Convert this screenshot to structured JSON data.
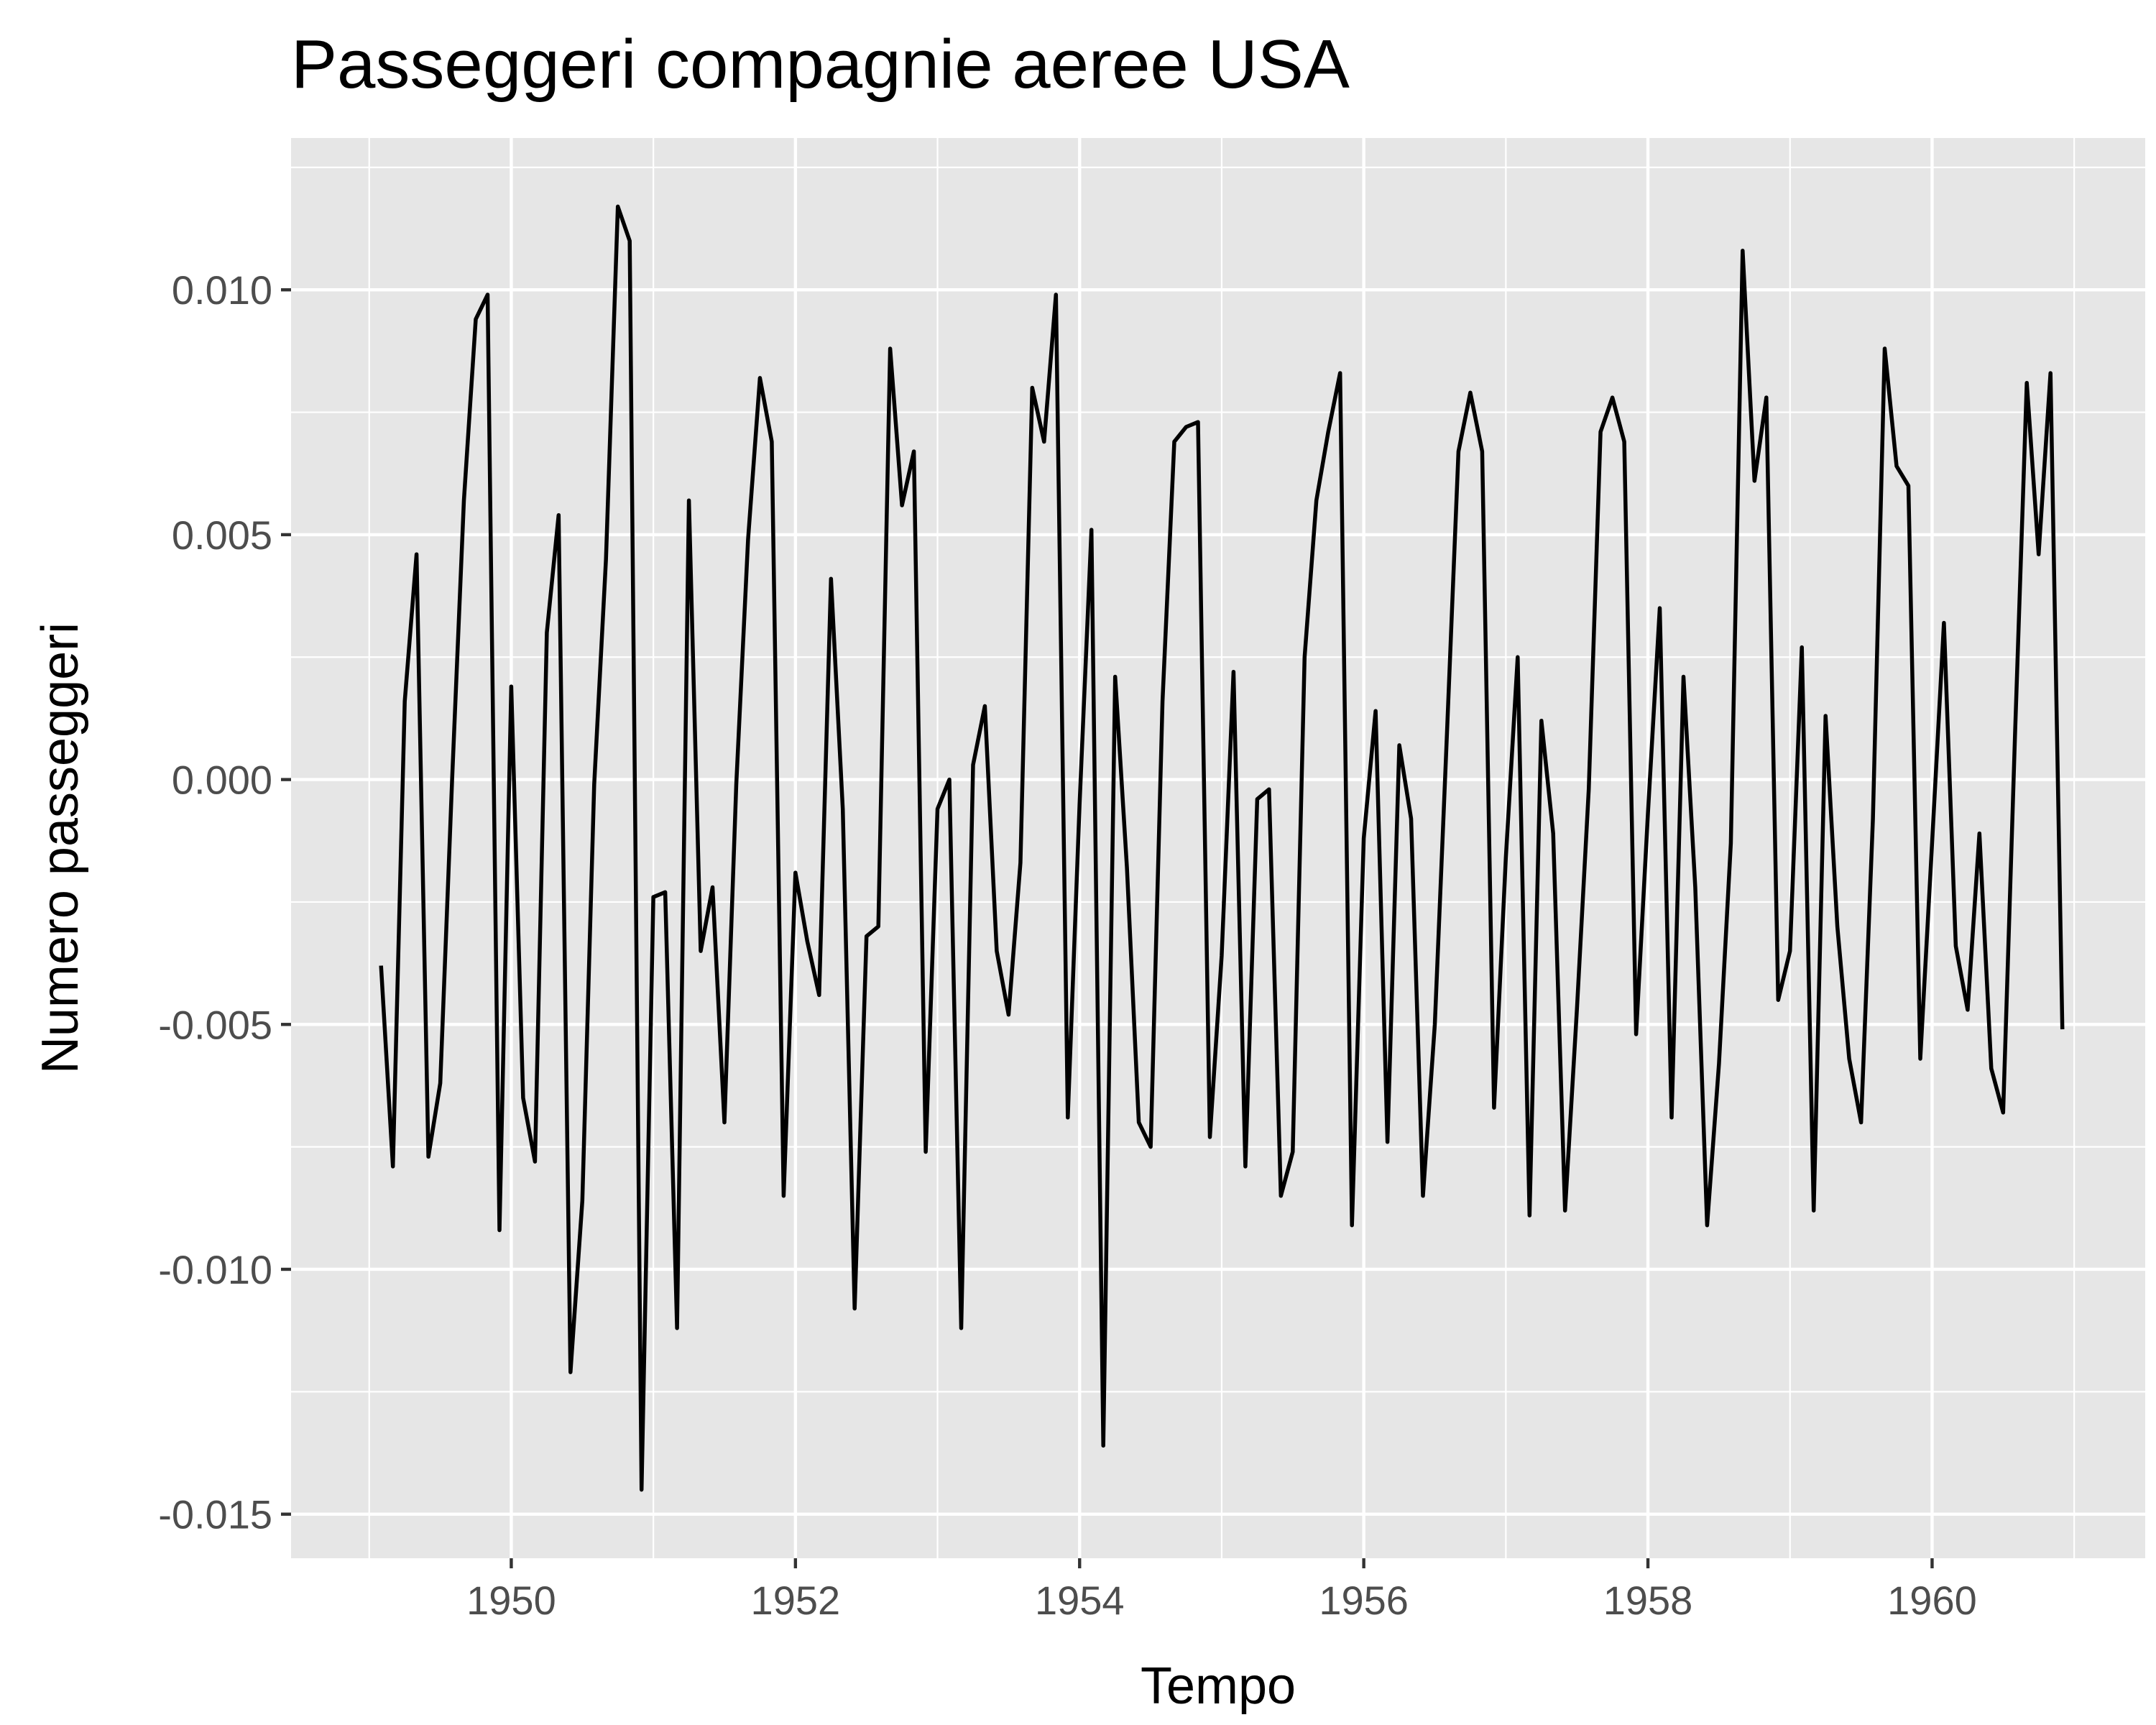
{
  "chart_data": {
    "type": "line",
    "title": "Passeggeri compagnie aeree USA",
    "xlabel": "Tempo",
    "ylabel": "Numero passeggeri",
    "xlim": [
      1948.45,
      1961.5
    ],
    "ylim": [
      -0.0159,
      0.0131
    ],
    "x_ticks": [
      1950,
      1952,
      1954,
      1956,
      1958,
      1960
    ],
    "x_tick_labels": [
      "1950",
      "1952",
      "1954",
      "1956",
      "1958",
      "1960"
    ],
    "y_ticks": [
      -0.015,
      -0.01,
      -0.005,
      0,
      0.005,
      0.01
    ],
    "y_tick_labels": [
      "-0.015",
      "-0.010",
      "-0.005",
      "0.000",
      "0.005",
      "0.010"
    ],
    "grid": true,
    "panel_background": "#e6e6e6",
    "grid_color": "#ffffff",
    "line_color": "#000000",
    "x_start": 1949.0833,
    "x_step": 0.083333,
    "series": [
      {
        "values": [
          -0.0038,
          -0.0079,
          0.0016,
          0.0046,
          -0.0077,
          -0.0062,
          0.0,
          0.0057,
          0.0094,
          0.0099,
          -0.0092,
          0.0019,
          -0.0065,
          -0.0078,
          0.003,
          0.0054,
          -0.0121,
          -0.0086,
          -0.0001,
          0.0045,
          0.0117,
          0.011,
          -0.0145,
          -0.0024,
          -0.0023,
          -0.0112,
          0.0057,
          -0.0035,
          -0.0022,
          -0.007,
          -0.0001,
          0.0049,
          0.0082,
          0.0069,
          -0.0085,
          -0.0019,
          -0.0033,
          -0.0044,
          0.0041,
          -0.0006,
          -0.0108,
          -0.0032,
          -0.003,
          0.0088,
          0.0056,
          0.0067,
          -0.0076,
          -0.0006,
          0.0,
          -0.0112,
          0.0003,
          0.0015,
          -0.0035,
          -0.0048,
          -0.0017,
          0.008,
          0.0069,
          0.0099,
          -0.0069,
          -0.0005,
          0.0051,
          -0.0136,
          0.0021,
          -0.0018,
          -0.007,
          -0.0075,
          0.0016,
          0.0069,
          0.0072,
          0.0073,
          -0.0073,
          -0.0036,
          0.0022,
          -0.0079,
          -0.0004,
          -0.0002,
          -0.0085,
          -0.0076,
          0.0025,
          0.0057,
          0.0071,
          0.0083,
          -0.0091,
          -0.0012,
          0.0014,
          -0.0074,
          0.0007,
          -0.0008,
          -0.0085,
          -0.005,
          0.0008,
          0.0067,
          0.0079,
          0.0067,
          -0.0067,
          -0.0016,
          0.0025,
          -0.0089,
          0.0012,
          -0.0011,
          -0.0088,
          -0.0047,
          -0.0002,
          0.0071,
          0.0078,
          0.0069,
          -0.0052,
          -0.0007,
          0.0035,
          -0.0069,
          0.0021,
          -0.0022,
          -0.0091,
          -0.0058,
          -0.0013,
          0.0108,
          0.0061,
          0.0078,
          -0.0045,
          -0.0035,
          0.0027,
          -0.0088,
          0.0013,
          -0.003,
          -0.0057,
          -0.007,
          -0.0008,
          0.0088,
          0.0064,
          0.006,
          -0.0057,
          -0.0013,
          0.0032,
          -0.0034,
          -0.0047,
          -0.0011,
          -0.0059,
          -0.0068,
          0.0009,
          0.0081,
          0.0046,
          0.0083,
          -0.0051
        ]
      }
    ]
  }
}
